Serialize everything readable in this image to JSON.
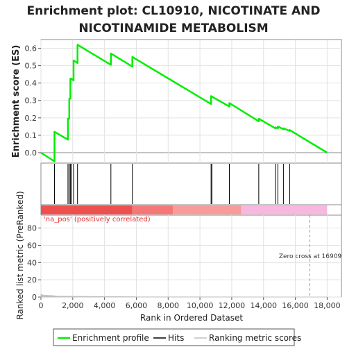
{
  "title_line1": "Enrichment plot: CL10910, NICOTINATE AND",
  "title_line2": "NICOTINAMIDE METABOLISM",
  "chart_data": {
    "type": "line",
    "es_panel": {
      "ylabel": "Enrichment score (ES)",
      "ylim": [
        -0.06,
        0.65
      ],
      "yticks": [
        0.0,
        0.1,
        0.2,
        0.3,
        0.4,
        0.5,
        0.6
      ],
      "ytick_labels": [
        "0.0",
        "0.1",
        "0.2",
        "0.3",
        "0.4",
        "0.5",
        "0.6"
      ],
      "series": [
        {
          "name": "Enrichment profile",
          "color": "#00ee00",
          "x": [
            0,
            850,
            850,
            1700,
            1700,
            1780,
            1780,
            1850,
            1850,
            1920,
            1920,
            2050,
            2050,
            2300,
            2300,
            4400,
            4400,
            5750,
            5750,
            10700,
            10700,
            11850,
            11850,
            13700,
            13700,
            14750,
            14750,
            14900,
            14900,
            15250,
            15250,
            15650,
            15650,
            18000
          ],
          "y": [
            0.0,
            -0.05,
            0.12,
            0.075,
            0.195,
            0.195,
            0.31,
            0.31,
            0.425,
            0.425,
            0.425,
            0.415,
            0.53,
            0.515,
            0.62,
            0.505,
            0.57,
            0.495,
            0.55,
            0.28,
            0.325,
            0.265,
            0.285,
            0.18,
            0.195,
            0.14,
            0.145,
            0.14,
            0.15,
            0.135,
            0.14,
            0.125,
            0.13,
            0.0
          ]
        }
      ]
    },
    "hits": {
      "name": "Hits",
      "color": "#000000",
      "x": [
        850,
        1700,
        1780,
        1850,
        1920,
        2050,
        2300,
        4400,
        5750,
        10700,
        10750,
        11850,
        13700,
        14750,
        14900,
        15250,
        15650
      ]
    },
    "rank_panel": {
      "ylabel": "Ranked list metric (PreRanked)",
      "xlabel": "Rank in Ordered Dataset",
      "xlim": [
        0,
        18900
      ],
      "ylim": [
        0,
        95
      ],
      "xticks": [
        0,
        2000,
        4000,
        6000,
        8000,
        10000,
        12000,
        14000,
        16000,
        18000
      ],
      "xtick_labels": [
        "0",
        "2,000",
        "4,000",
        "6,000",
        "8,000",
        "10,000",
        "12,000",
        "14,000",
        "16,000",
        "18,000"
      ],
      "yticks": [
        0,
        20,
        40,
        60,
        80
      ],
      "ytick_labels": [
        "0",
        "20",
        "40",
        "60",
        "80"
      ],
      "series": [
        {
          "name": "Ranking metric scores",
          "color": "#c0c0c0",
          "x": [
            0,
            200,
            800,
            1000,
            2000,
            4000,
            5700,
            6000,
            10000,
            16909,
            18000
          ],
          "y": [
            3,
            2,
            1.5,
            1,
            0.8,
            0.5,
            0.3,
            0.2,
            0.1,
            0,
            0
          ]
        }
      ],
      "zero_cross": 16909,
      "zero_cross_label": "Zero cross at 16909",
      "pos_label": "'na_pos' (positively correlated)"
    },
    "colorbar": {
      "segments": [
        {
          "from": 0,
          "to": 5750,
          "color": "#ee4f4f"
        },
        {
          "from": 5750,
          "to": 8300,
          "color": "#f47878"
        },
        {
          "from": 8300,
          "to": 12600,
          "color": "#f79b9b"
        },
        {
          "from": 12600,
          "to": 18000,
          "color": "#f6b8de"
        }
      ]
    },
    "xlim": [
      0,
      18900
    ],
    "legend": {
      "placement": "bottom",
      "items": [
        {
          "label": "Enrichment profile",
          "color": "#00ee00"
        },
        {
          "label": "Hits",
          "color": "#000000"
        },
        {
          "label": "Ranking metric scores",
          "color": "#c0c0c0"
        }
      ]
    }
  }
}
